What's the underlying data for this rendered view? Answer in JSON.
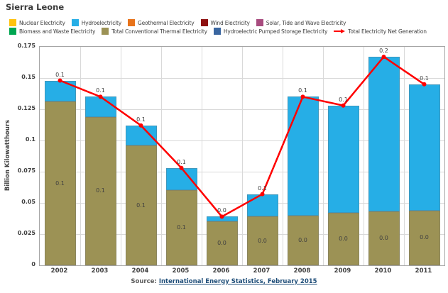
{
  "title": "Sierra Leone",
  "legend": {
    "rows": [
      [
        {
          "label": "Nuclear Electricity",
          "color": "#FFC20E",
          "type": "swatch"
        },
        {
          "label": "Hydroelectricity",
          "color": "#26AEE6",
          "type": "swatch"
        },
        {
          "label": "Geothermal Electricity",
          "color": "#E8731A",
          "type": "swatch"
        },
        {
          "label": "Wind Electricity",
          "color": "#8E1111",
          "type": "swatch"
        },
        {
          "label": "Solar, Tide and Wave Electricity",
          "color": "#A84C7F",
          "type": "swatch"
        }
      ],
      [
        {
          "label": "Biomass and Waste Electricity",
          "color": "#00A651",
          "type": "swatch"
        },
        {
          "label": "Total Conventional Thermal Electricity",
          "color": "#9C9255",
          "type": "swatch"
        },
        {
          "label": "Hydroelectric Pumped Storage Electricity",
          "color": "#3A66A0",
          "type": "swatch"
        },
        {
          "label": "Total Electricity Net Generation",
          "color": "#FF0000",
          "type": "line-arrow"
        }
      ]
    ]
  },
  "chart_data": {
    "type": "bar",
    "stacked": true,
    "title": "Sierra Leone",
    "categories": [
      "2002",
      "2003",
      "2004",
      "2005",
      "2006",
      "2007",
      "2008",
      "2009",
      "2010",
      "2011"
    ],
    "series": [
      {
        "name": "Total Conventional Thermal Electricity",
        "color": "#9C9255",
        "values": [
          0.131,
          0.119,
          0.096,
          0.06,
          0.035,
          0.039,
          0.04,
          0.042,
          0.043,
          0.044
        ],
        "labels": [
          "0.1",
          "0.1",
          "0.1",
          "0.1",
          "0.0",
          "0.0",
          "0.0",
          "0.0",
          "0.0",
          "0.0"
        ]
      },
      {
        "name": "Hydroelectricity",
        "color": "#26AEE6",
        "values": [
          0.017,
          0.016,
          0.016,
          0.018,
          0.004,
          0.018,
          0.095,
          0.086,
          0.124,
          0.101
        ]
      }
    ],
    "line_series": {
      "name": "Total Electricity Net Generation",
      "color": "#FF0000",
      "values": [
        0.148,
        0.135,
        0.112,
        0.078,
        0.039,
        0.057,
        0.135,
        0.128,
        0.167,
        0.145
      ],
      "labels": [
        "0.1",
        "0.1",
        "0.1",
        "0.1",
        "0.0",
        "0.1",
        "0.1",
        "0.1",
        "0.2",
        "0.1"
      ]
    },
    "xlabel": "",
    "ylabel": "Billion Kilowatthours",
    "ylim": [
      0,
      0.175
    ],
    "yticks": [
      0,
      0.025,
      0.05,
      0.075,
      0.1,
      0.125,
      0.15,
      0.175
    ],
    "grid": true,
    "legend_position": "top"
  },
  "source": {
    "prefix": "Source:",
    "link_text": "International Energy Statistics, February 2015"
  },
  "style_colors": {
    "text": "#404040",
    "gridline": "#D9D9D9",
    "plot_border": "#A6A6A6",
    "source_prefix": "#595959",
    "source_link": "#1F4E79"
  }
}
